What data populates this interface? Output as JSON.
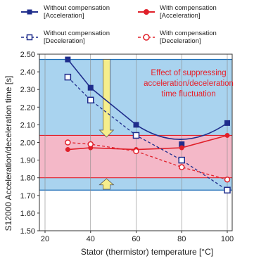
{
  "chart_data": {
    "type": "line",
    "xlabel": "Stator (thermistor) temperature [°C]",
    "ylabel": "S12000 Acceleration/deceleration time [s]",
    "xlim": [
      20,
      100
    ],
    "ylim": [
      1.5,
      2.5
    ],
    "x_ticks": [
      "20",
      "40",
      "60",
      "80",
      "100"
    ],
    "y_ticks": [
      "1.50",
      "1.60",
      "1.70",
      "1.80",
      "1.90",
      "2.00",
      "2.10",
      "2.20",
      "2.30",
      "2.40",
      "2.50"
    ],
    "x": [
      30,
      40,
      60,
      80,
      100
    ],
    "series": [
      {
        "name_line1": "Without compensation",
        "name_line2": "[Acceleration]",
        "color": "#1f2d8c",
        "marker": "square-filled",
        "line": "solid",
        "values": [
          2.47,
          2.31,
          2.1,
          1.99,
          2.11
        ]
      },
      {
        "name_line1": "With compensation",
        "name_line2": "[Acceleration]",
        "color": "#e0202a",
        "marker": "circle-filled",
        "line": "solid",
        "values": [
          1.96,
          1.97,
          1.96,
          1.97,
          2.04
        ]
      },
      {
        "name_line1": "Without compensation",
        "name_line2": "[Deceleration]",
        "color": "#1f2d8c",
        "marker": "square-open",
        "line": "dashed",
        "values": [
          2.37,
          2.24,
          2.04,
          1.9,
          1.73
        ]
      },
      {
        "name_line1": "With compensation",
        "name_line2": "[Deceleration]",
        "color": "#e0202a",
        "marker": "circle-open",
        "line": "dashed",
        "values": [
          2.0,
          1.99,
          1.95,
          1.86,
          1.79
        ]
      }
    ],
    "bands": {
      "blue": {
        "from": 1.73,
        "to": 2.47,
        "color": "#a9d3ef"
      },
      "pink": {
        "from": 1.8,
        "to": 2.04,
        "color": "#f4b8c8"
      }
    },
    "annotation_lines": [
      "Effect of suppressing",
      "acceleration/deceleration",
      "time fluctuation"
    ],
    "arrow_color": "#f6ee8c",
    "grid": "vertical",
    "legend_position": "top"
  }
}
